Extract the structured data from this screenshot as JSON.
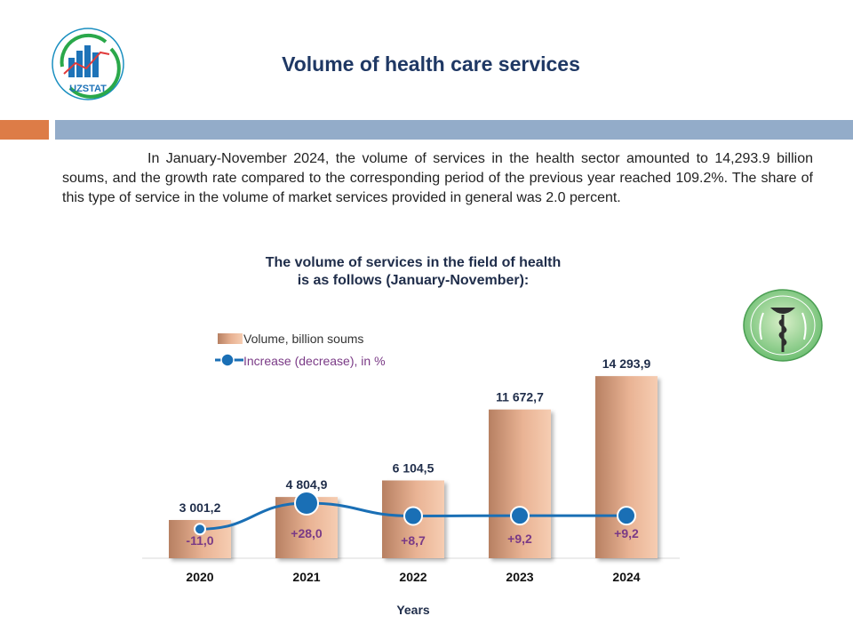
{
  "header": {
    "logo_text": "UZSTAT",
    "title": "Volume of health care services"
  },
  "intro_text": "In January-November 2024, the volume of services in the health sector amounted to 14,293.9 billion soums, and the growth rate compared to the corresponding period of the previous year reached 109.2%. The share of this type of service in the volume of market services provided in general was 2.0 percent.",
  "colors": {
    "title": "#1f3864",
    "accent_orange": "#dd7c47",
    "accent_blue": "#93acc9",
    "line": "#1a6fb5",
    "pct_text": "#7a3a86",
    "bar_dark": "#b78062",
    "bar_light": "#f6cdb2"
  },
  "chart_data": {
    "type": "bar",
    "title_line1": "The volume of services in the field of health",
    "title_line2": "is as follows (January-November):",
    "categories": [
      "2020",
      "2021",
      "2022",
      "2023",
      "2024"
    ],
    "series": [
      {
        "name": "Volume, billion soums",
        "type": "bar",
        "values": [
          3001.2,
          4804.9,
          6104.5,
          11672.7,
          14293.9
        ],
        "labels": [
          "3 001,2",
          "4 804,9",
          "6 104,5",
          "11 672,7",
          "14 293,9"
        ]
      },
      {
        "name": "Increase (decrease), in %",
        "type": "line",
        "values": [
          -11.0,
          28.0,
          8.7,
          9.2,
          9.2
        ],
        "labels": [
          "-11,0",
          "+28,0",
          "+8,7",
          "+9,2",
          "+9,2"
        ]
      }
    ],
    "xlabel": "Years",
    "ylabel": "",
    "ylim": [
      0,
      15000
    ]
  }
}
